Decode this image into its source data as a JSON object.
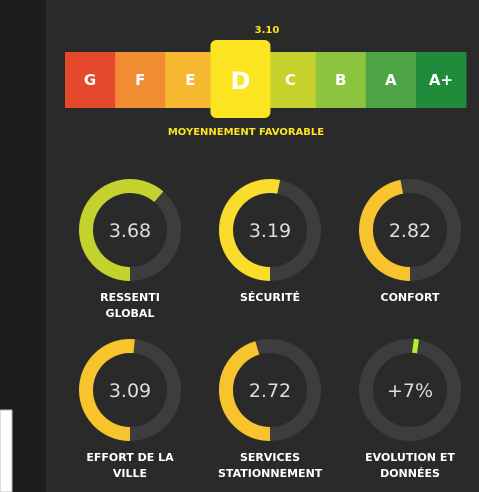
{
  "rating": {
    "score": "3.10",
    "grades": [
      "G",
      "F",
      "E",
      "D",
      "C",
      "B",
      "A",
      "A+"
    ],
    "selected": 3,
    "colors": [
      "#e5482b",
      "#f08c32",
      "#f6b731",
      "#fde420",
      "#c7d12c",
      "#8cc43e",
      "#4ea546",
      "#1f8c3b"
    ],
    "verdict": "MOYENNEMENT FAVORABLE"
  },
  "gauge_range": [
    0,
    6
  ],
  "gauges": [
    {
      "label": "RESSENTI GLOBAL",
      "value": 3.68,
      "value_label": "3.68",
      "color": "#c5d12d"
    },
    {
      "label": "SÉCURITÉ",
      "value": 3.19,
      "value_label": "3.19",
      "color": "#f9dc2c"
    },
    {
      "label": "CONFORT",
      "value": 2.82,
      "value_label": "2.82",
      "color": "#f8c42e"
    },
    {
      "label": "EFFORT DE LA VILLE",
      "value": 3.09,
      "value_label": "3.09",
      "color": "#f8c42e"
    },
    {
      "label": "SERVICES STATIONNEMENT",
      "value": 2.72,
      "value_label": "2.72",
      "color": "#f8c42e"
    }
  ],
  "evolution": {
    "label": "EVOLUTION ET DONNÉES",
    "value_label": "+7%"
  }
}
